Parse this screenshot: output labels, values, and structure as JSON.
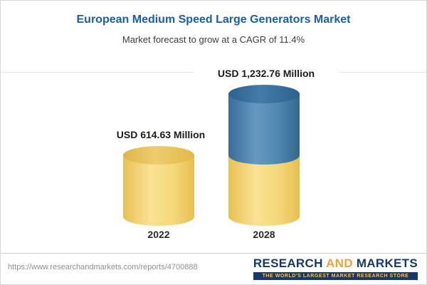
{
  "chart_data": {
    "type": "bar",
    "style": "3d-cylinder-stacked",
    "title": "European Medium Speed Large Generators Market",
    "subtitle": "Market forecast to grow at a CAGR of 11.4%",
    "cagr": "11.4%",
    "unit": "USD Million",
    "categories": [
      "2022",
      "2028"
    ],
    "values": [
      614.63,
      1232.76
    ],
    "value_labels": [
      "USD 614.63 Million",
      "USD 1,232.76 Million"
    ],
    "ylim": [
      0,
      1232.76
    ],
    "grid": false,
    "legend": "none",
    "series": [
      {
        "name": "base",
        "color": "#f2d377",
        "values": [
          614.63,
          614.63
        ]
      },
      {
        "name": "growth",
        "color": "#4c83ae",
        "values": [
          0,
          618.13
        ]
      }
    ],
    "colors": {
      "title": "#1a5dab",
      "base_segment": "#f2d377",
      "growth_segment": "#4c83ae"
    }
  },
  "footer": {
    "url": "https://www.researchandmarkets.com/reports/4700888",
    "logo": {
      "research": "RESEARCH",
      "and": "AND",
      "markets": "MARKETS",
      "tagline": "THE WORLD'S LARGEST MARKET RESEARCH STORE"
    }
  }
}
